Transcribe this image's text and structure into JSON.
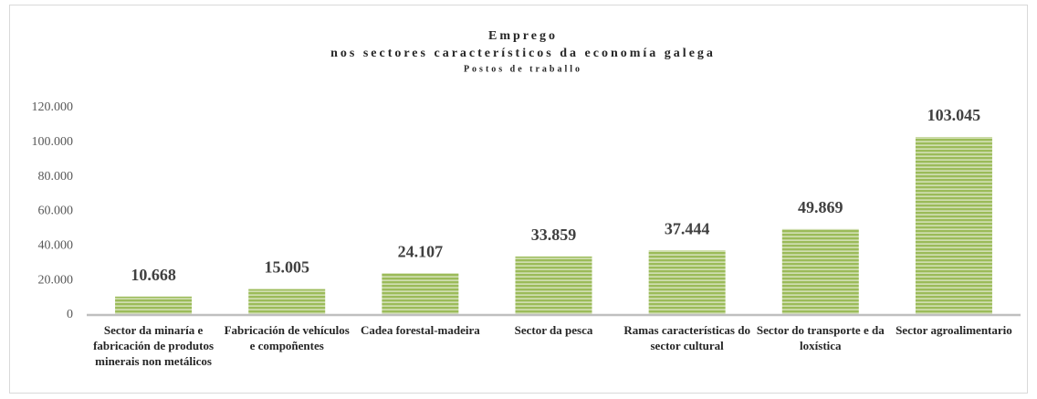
{
  "chart_data": {
    "type": "bar",
    "title": "Emprego",
    "subtitle": "nos sectores característicos da economía galega",
    "note": "Postos de traballo",
    "categories": [
      "Sector da minaría e fabricación de produtos minerais non metálicos",
      "Fabricación de vehículos e compoñentes",
      "Cadea forestal-madeira",
      "Sector da pesca",
      "Ramas características do sector cultural",
      "Sector do transporte e da loxística",
      "Sector agroalimentario"
    ],
    "values": [
      10668,
      15005,
      24107,
      33859,
      37444,
      49869,
      103045
    ],
    "value_labels": [
      "10.668",
      "15.005",
      "24.107",
      "33.859",
      "37.444",
      "49.869",
      "103.045"
    ],
    "color": "#9bbb59",
    "ylim": [
      0,
      120000
    ],
    "yticks": [
      0,
      {
        "value": 20000,
        "label": "20.000"
      },
      {
        "value": 40000,
        "label": "40.000"
      },
      {
        "value": 60000,
        "label": "60.000"
      },
      {
        "value": 80000,
        "label": "80.000"
      },
      {
        "value": 100000,
        "label": "100.000"
      },
      {
        "value": 120000,
        "label": "120.000"
      }
    ],
    "grid": false
  }
}
